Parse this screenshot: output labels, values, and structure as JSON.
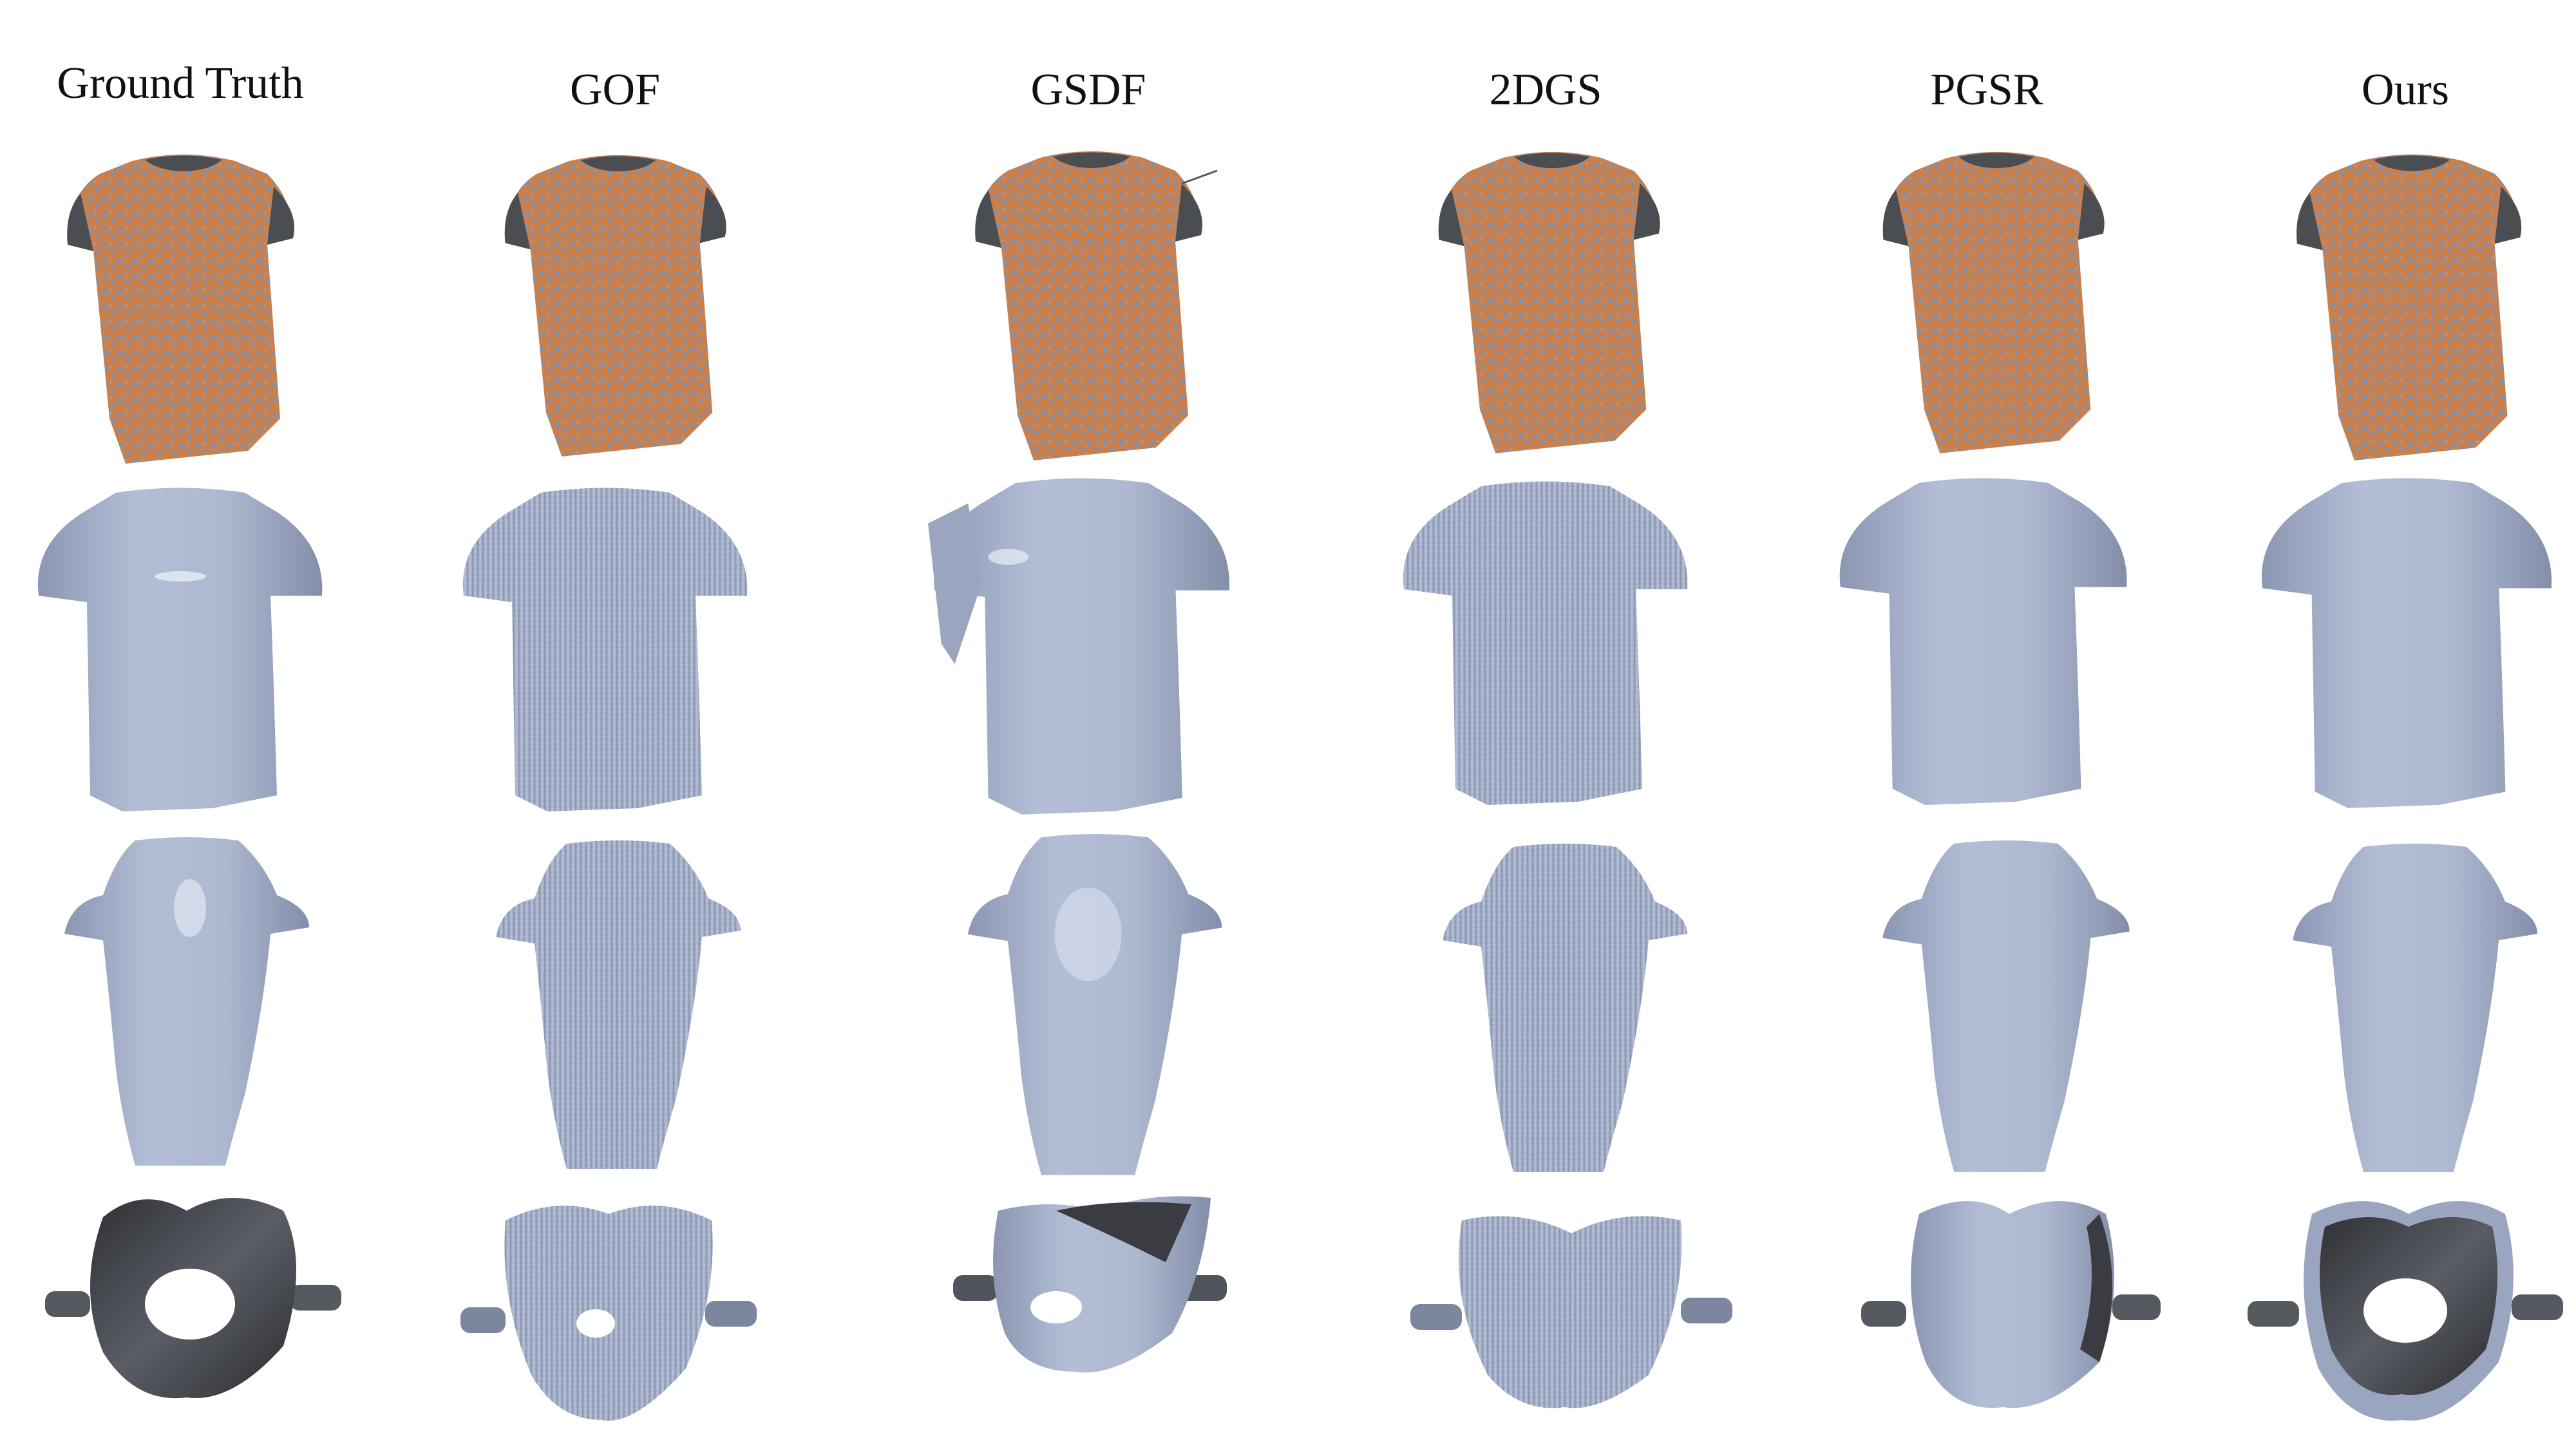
{
  "figure": {
    "columns": [
      {
        "label": "Ground Truth",
        "id": "ground-truth"
      },
      {
        "label": "GOF",
        "id": "gof"
      },
      {
        "label": "GSDF",
        "id": "gsdf"
      },
      {
        "label": "2DGS",
        "id": "2dgs"
      },
      {
        "label": "PGSR",
        "id": "pgsr"
      },
      {
        "label": "Ours",
        "id": "ours"
      }
    ],
    "colors": {
      "fabric_orange": "#c9804f",
      "fabric_blue": "#7d93b0",
      "collar_dark": "#4a4d52",
      "mesh_blue": "#a9b4cc",
      "mesh_shadow": "#7f8aa6",
      "mesh_dark": "#3f4147"
    }
  }
}
